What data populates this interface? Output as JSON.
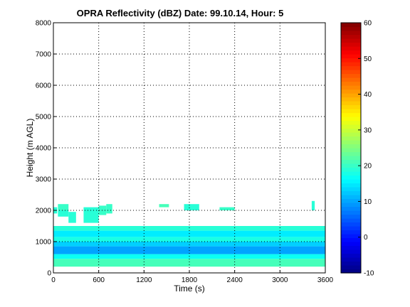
{
  "chart_data": {
    "type": "heatmap",
    "title": "OPRA Reflectivity (dBZ)  Date: 99.10.14, Hour: 5",
    "xlabel": "Time (s)",
    "ylabel": "Height (m AGL)",
    "xlim": [
      0,
      3600
    ],
    "ylim": [
      0,
      8000
    ],
    "xticks": [
      0,
      600,
      1200,
      1800,
      2400,
      3000,
      3600
    ],
    "yticks": [
      0,
      1000,
      2000,
      3000,
      4000,
      5000,
      6000,
      7000,
      8000
    ],
    "grid": true,
    "colorbar": {
      "range": [
        -10,
        60
      ],
      "ticks": [
        -10,
        0,
        10,
        20,
        30,
        40,
        50,
        60
      ],
      "colormap": "jet"
    },
    "layers": [
      {
        "height_range": [
          200,
          450
        ],
        "dbz": 21
      },
      {
        "height_range": [
          450,
          600
        ],
        "dbz": 17
      },
      {
        "height_range": [
          600,
          850
        ],
        "dbz": 10
      },
      {
        "height_range": [
          850,
          1000
        ],
        "dbz": 13
      },
      {
        "height_range": [
          1000,
          1150
        ],
        "dbz": 18
      },
      {
        "height_range": [
          1150,
          1350
        ],
        "dbz": 15
      },
      {
        "height_range": [
          1350,
          1500
        ],
        "dbz": 19
      }
    ],
    "patches": [
      {
        "t": [
          0,
          50
        ],
        "h": [
          1900,
          2100
        ],
        "dbz": 19
      },
      {
        "t": [
          60,
          200
        ],
        "h": [
          2000,
          2200
        ],
        "dbz": 20
      },
      {
        "t": [
          60,
          200
        ],
        "h": [
          1800,
          2000
        ],
        "dbz": 19
      },
      {
        "t": [
          200,
          300
        ],
        "h": [
          1600,
          1950
        ],
        "dbz": 19
      },
      {
        "t": [
          400,
          600
        ],
        "h": [
          1600,
          2100
        ],
        "dbz": 19
      },
      {
        "t": [
          600,
          700
        ],
        "h": [
          1850,
          2150
        ],
        "dbz": 20
      },
      {
        "t": [
          700,
          780
        ],
        "h": [
          1900,
          2200
        ],
        "dbz": 20
      },
      {
        "t": [
          1400,
          1530
        ],
        "h": [
          2100,
          2200
        ],
        "dbz": 21
      },
      {
        "t": [
          1730,
          1930
        ],
        "h": [
          2000,
          2200
        ],
        "dbz": 19
      },
      {
        "t": [
          2200,
          2400
        ],
        "h": [
          2000,
          2100
        ],
        "dbz": 20
      },
      {
        "t": [
          3420,
          3460
        ],
        "h": [
          2000,
          2300
        ],
        "dbz": 19
      }
    ]
  }
}
